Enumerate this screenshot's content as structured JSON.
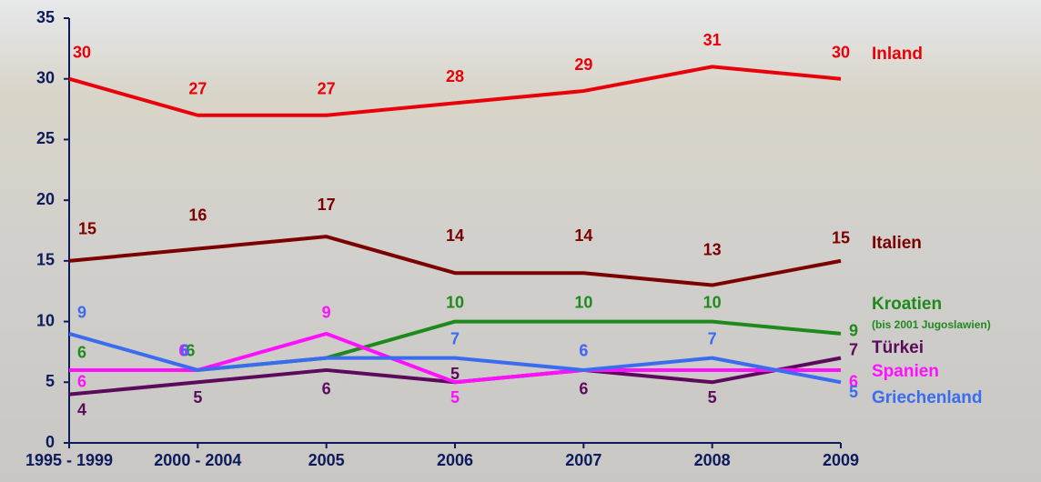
{
  "chart_data": {
    "type": "line",
    "categories": [
      "1995 - 1999",
      "2000 - 2004",
      "2005",
      "2006",
      "2007",
      "2008",
      "2009"
    ],
    "ylim": [
      0,
      35
    ],
    "yticks": [
      0,
      5,
      10,
      15,
      20,
      25,
      30,
      35
    ],
    "series": [
      {
        "name": "Inland",
        "color": "#e8000b",
        "values": [
          30,
          27,
          27,
          28,
          29,
          31,
          30
        ]
      },
      {
        "name": "Italien",
        "color": "#7b0000",
        "values": [
          15,
          16,
          17,
          14,
          14,
          13,
          15
        ]
      },
      {
        "name": "Kroatien",
        "note": "(bis 2001 Jugoslawien)",
        "color": "#1e8a1e",
        "values": [
          6,
          6,
          7,
          10,
          10,
          10,
          9
        ],
        "value_labels": [
          "6",
          "6",
          null,
          "10",
          "10",
          "10",
          "9"
        ]
      },
      {
        "name": "Türkei",
        "color": "#5c0a5c",
        "values": [
          4,
          5,
          6,
          5,
          6,
          5,
          7
        ]
      },
      {
        "name": "Spanien",
        "color": "#ff10ff",
        "values": [
          6,
          6,
          9,
          5,
          6,
          6,
          6
        ],
        "value_labels": [
          "6",
          "6",
          "9",
          "5",
          "6",
          null,
          "6"
        ]
      },
      {
        "name": "Griechenland",
        "color": "#3a6cf0",
        "values": [
          9,
          6,
          7,
          7,
          6,
          7,
          5
        ],
        "value_labels": [
          "9",
          "6",
          null,
          "7",
          "6",
          "7",
          "5"
        ]
      }
    ]
  }
}
